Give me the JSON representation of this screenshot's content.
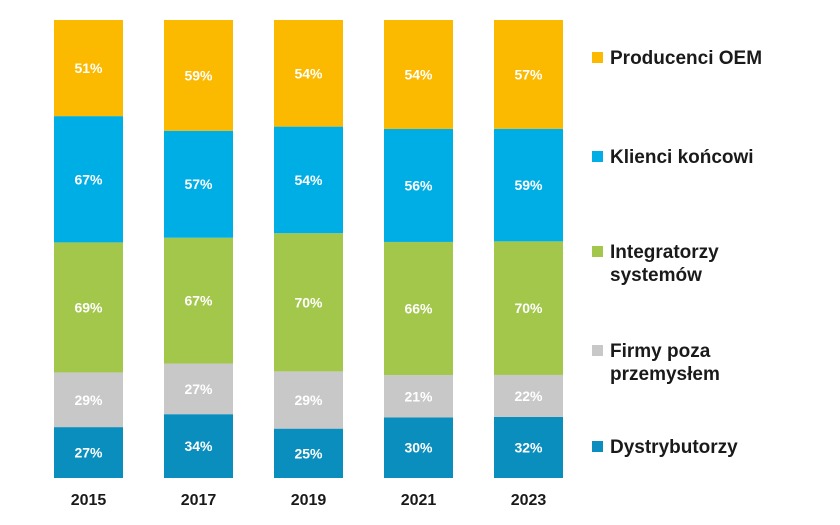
{
  "chart_data": {
    "type": "bar",
    "stacked": true,
    "categories": [
      "2015",
      "2017",
      "2019",
      "2021",
      "2023"
    ],
    "series": [
      {
        "name": "Dystrybutorzy",
        "color": "#0a8ebd",
        "values": [
          27,
          34,
          25,
          30,
          32
        ]
      },
      {
        "name": "Firmy poza\nprzemysłem",
        "color": "#c8c8c8",
        "values": [
          29,
          27,
          29,
          21,
          22
        ]
      },
      {
        "name": "Integratorzy\nsystemów",
        "color": "#a3c74b",
        "values": [
          69,
          67,
          70,
          66,
          70
        ]
      },
      {
        "name": "Klienci końcowi",
        "color": "#00aee6",
        "values": [
          67,
          57,
          54,
          56,
          59
        ]
      },
      {
        "name": "Producenci OEM",
        "color": "#fbb900",
        "values": [
          51,
          59,
          54,
          54,
          57
        ]
      }
    ],
    "value_suffix": "%",
    "grid": false,
    "legend_position": "right"
  }
}
